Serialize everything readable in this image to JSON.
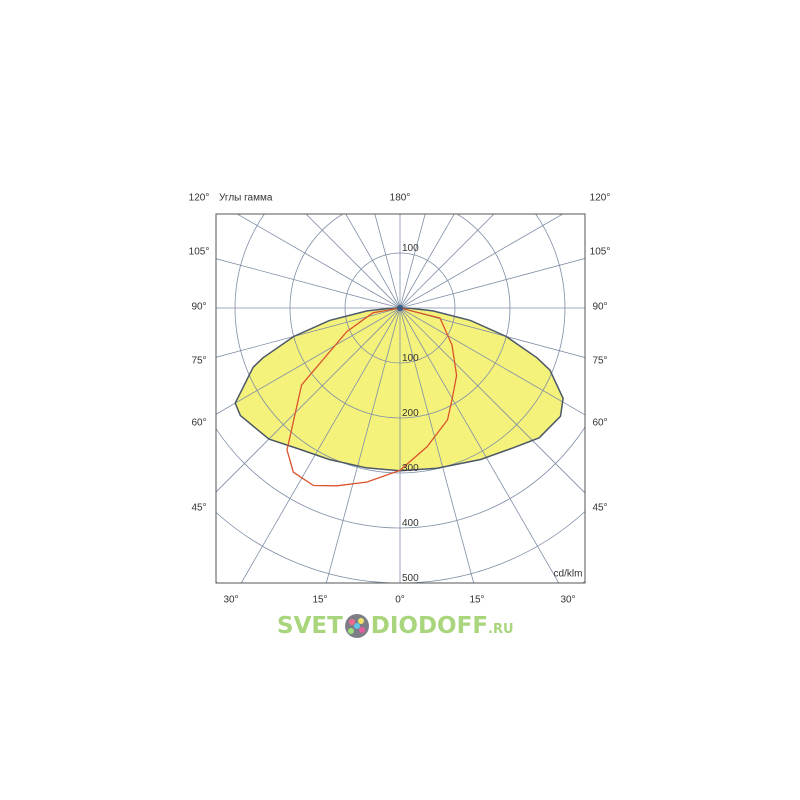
{
  "chart_data": {
    "type": "polar",
    "title": "Углы гамма",
    "unit_label": "cd/klm",
    "radial_ticks": [
      100,
      200,
      300,
      400,
      500
    ],
    "radial_max_visible": 500,
    "angle_step_deg": 15,
    "grid": true,
    "angle_labels": {
      "top": "180°",
      "left": [
        "120°",
        "105°",
        "90°",
        "75°",
        "60°",
        "45°"
      ],
      "right": [
        "120°",
        "105°",
        "90°",
        "75°",
        "60°",
        "45°"
      ],
      "bottom": [
        "30°",
        "15°",
        "0°",
        "15°",
        "30°"
      ]
    },
    "series": [
      {
        "color": "#f5f27c",
        "outline": "#4b5866",
        "points": [
          [
            -90,
            0
          ],
          [
            -88,
            20
          ],
          [
            -85,
            60
          ],
          [
            -80,
            130
          ],
          [
            -75,
            200
          ],
          [
            -70,
            265
          ],
          [
            -68,
            288
          ],
          [
            -60,
            346
          ],
          [
            -56,
            350
          ],
          [
            -45,
            337
          ],
          [
            -36,
            316
          ],
          [
            -25,
            304
          ],
          [
            -12,
            297
          ],
          [
            0,
            296
          ],
          [
            13,
            299
          ],
          [
            28,
            312
          ],
          [
            39,
            327
          ],
          [
            47,
            346
          ],
          [
            56,
            352
          ],
          [
            61,
            339
          ],
          [
            67.5,
            295
          ],
          [
            70,
            265
          ],
          [
            75,
            200
          ],
          [
            80,
            130
          ],
          [
            85,
            60
          ],
          [
            88,
            20
          ],
          [
            90,
            0
          ]
        ]
      },
      {
        "color": "#d9532b",
        "points": [
          [
            -90,
            0
          ],
          [
            -80,
            50
          ],
          [
            -66,
            106
          ],
          [
            -52,
            227
          ],
          [
            -38.5,
            330
          ],
          [
            -33,
            356
          ],
          [
            -26,
            359
          ],
          [
            -19.5,
            343
          ],
          [
            -10.7,
            322
          ],
          [
            0,
            295
          ],
          [
            11,
            257
          ],
          [
            23,
            221
          ],
          [
            29.5,
            192
          ],
          [
            40,
            160
          ],
          [
            54.6,
            116
          ],
          [
            76,
            75
          ],
          [
            90,
            0
          ]
        ]
      }
    ]
  },
  "logo": {
    "text_left": "SVET",
    "text_right": "DIODOFF",
    "suffix": ".RU"
  },
  "colors": {
    "grid": "#7f8ea6",
    "frame": "#555555"
  }
}
